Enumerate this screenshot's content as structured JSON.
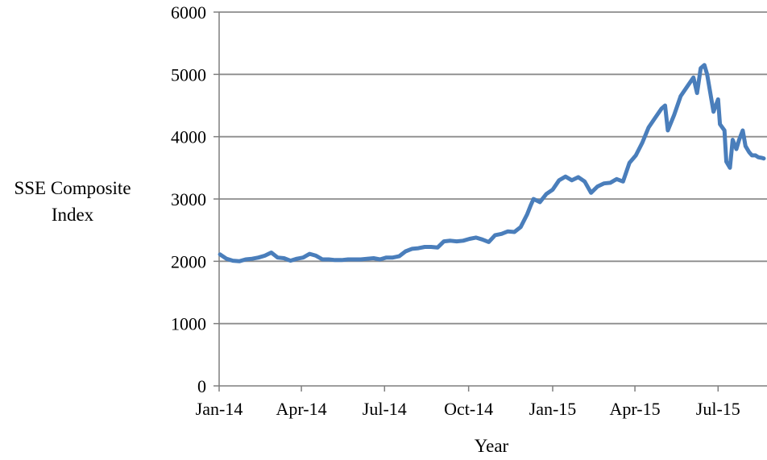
{
  "chart_data": {
    "type": "line",
    "title": "",
    "ylabel": [
      "SSE Composite",
      "Index"
    ],
    "xlabel": "Year",
    "ylim": [
      0,
      6000
    ],
    "yticks": [
      0,
      1000,
      2000,
      3000,
      4000,
      5000,
      6000
    ],
    "xlim": [
      "2014-01-01",
      "2015-08-20"
    ],
    "xticks": [
      {
        "date": "2014-01-01",
        "label": "Jan-14"
      },
      {
        "date": "2014-04-01",
        "label": "Apr-14"
      },
      {
        "date": "2014-07-01",
        "label": "Jul-14"
      },
      {
        "date": "2014-10-01",
        "label": "Oct-14"
      },
      {
        "date": "2015-01-01",
        "label": "Jan-15"
      },
      {
        "date": "2015-04-01",
        "label": "Apr-15"
      },
      {
        "date": "2015-07-01",
        "label": "Jul-15"
      }
    ],
    "grid": "horizontal",
    "line_color": "#4A7EBB",
    "series": [
      {
        "name": "",
        "x": [
          "2014-01-02",
          "2014-01-09",
          "2014-01-16",
          "2014-01-23",
          "2014-01-30",
          "2014-02-06",
          "2014-02-13",
          "2014-02-20",
          "2014-02-27",
          "2014-03-06",
          "2014-03-13",
          "2014-03-20",
          "2014-03-27",
          "2014-04-03",
          "2014-04-10",
          "2014-04-17",
          "2014-04-24",
          "2014-05-01",
          "2014-05-08",
          "2014-05-15",
          "2014-05-22",
          "2014-05-29",
          "2014-06-05",
          "2014-06-12",
          "2014-06-19",
          "2014-06-26",
          "2014-07-03",
          "2014-07-10",
          "2014-07-17",
          "2014-07-24",
          "2014-07-31",
          "2014-08-07",
          "2014-08-14",
          "2014-08-21",
          "2014-08-28",
          "2014-09-04",
          "2014-09-11",
          "2014-09-18",
          "2014-09-25",
          "2014-10-02",
          "2014-10-09",
          "2014-10-16",
          "2014-10-23",
          "2014-10-30",
          "2014-11-06",
          "2014-11-13",
          "2014-11-20",
          "2014-11-27",
          "2014-12-04",
          "2014-12-08",
          "2014-12-11",
          "2014-12-18",
          "2014-12-25",
          "2015-01-01",
          "2015-01-08",
          "2015-01-15",
          "2015-01-22",
          "2015-01-29",
          "2015-02-05",
          "2015-02-12",
          "2015-02-19",
          "2015-02-26",
          "2015-03-05",
          "2015-03-12",
          "2015-03-19",
          "2015-03-26",
          "2015-04-02",
          "2015-04-09",
          "2015-04-16",
          "2015-04-23",
          "2015-04-30",
          "2015-05-04",
          "2015-05-07",
          "2015-05-14",
          "2015-05-21",
          "2015-05-28",
          "2015-06-04",
          "2015-06-08",
          "2015-06-12",
          "2015-06-16",
          "2015-06-19",
          "2015-06-26",
          "2015-07-01",
          "2015-07-03",
          "2015-07-08",
          "2015-07-10",
          "2015-07-14",
          "2015-07-17",
          "2015-07-21",
          "2015-07-24",
          "2015-07-28",
          "2015-07-31",
          "2015-08-04",
          "2015-08-07",
          "2015-08-11",
          "2015-08-14",
          "2015-08-18",
          "2015-08-20"
        ],
        "values": [
          2110,
          2040,
          2010,
          2000,
          2030,
          2040,
          2060,
          2090,
          2140,
          2060,
          2050,
          2010,
          2040,
          2060,
          2120,
          2090,
          2030,
          2030,
          2020,
          2020,
          2030,
          2030,
          2030,
          2040,
          2050,
          2030,
          2060,
          2060,
          2080,
          2160,
          2200,
          2210,
          2230,
          2230,
          2220,
          2320,
          2330,
          2320,
          2330,
          2360,
          2380,
          2350,
          2310,
          2420,
          2440,
          2480,
          2470,
          2550,
          2750,
          2900,
          3000,
          2950,
          3080,
          3150,
          3300,
          3360,
          3300,
          3350,
          3280,
          3100,
          3200,
          3250,
          3260,
          3320,
          3280,
          3580,
          3700,
          3900,
          4150,
          4300,
          4450,
          4500,
          4100,
          4350,
          4650,
          4800,
          4950,
          4700,
          5100,
          5150,
          5000,
          4400,
          4600,
          4200,
          4100,
          3600,
          3500,
          3950,
          3800,
          3950,
          4100,
          3850,
          3750,
          3700,
          3700,
          3670,
          3660,
          3650
        ]
      }
    ]
  }
}
